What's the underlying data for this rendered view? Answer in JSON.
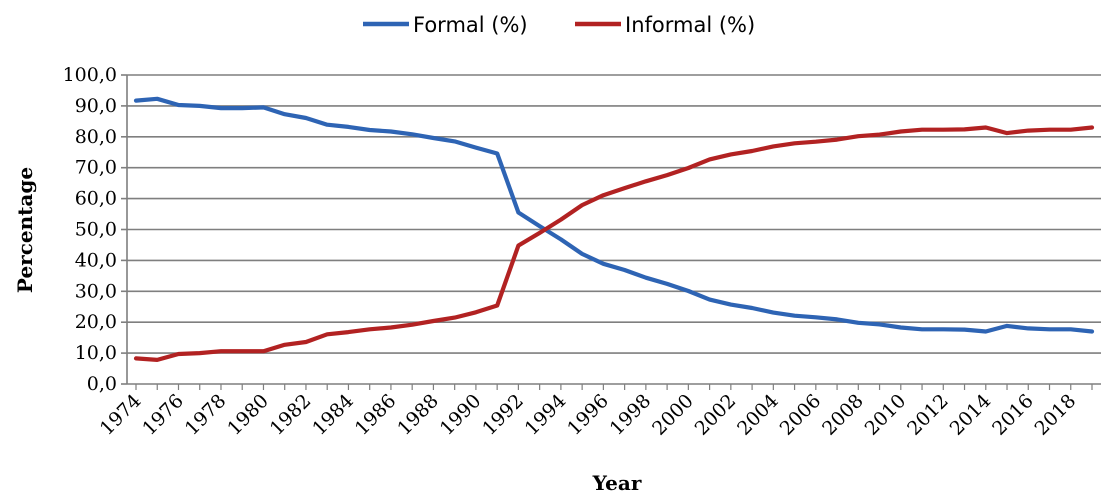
{
  "chart_data": {
    "type": "line",
    "title": "",
    "xlabel": "Year",
    "ylabel": "Percentage",
    "ylim": [
      0,
      100
    ],
    "yticks": [
      "0,0",
      "10,0",
      "20,0",
      "30,0",
      "40,0",
      "50,0",
      "60,0",
      "70,0",
      "80,0",
      "90,0",
      "100,0"
    ],
    "xticks": [
      "1974",
      "1976",
      "1978",
      "1980",
      "1982",
      "1984",
      "1986",
      "1988",
      "1990",
      "1992",
      "1994",
      "1996",
      "1998",
      "2000",
      "2002",
      "2004",
      "2006",
      "2008",
      "2010",
      "2012",
      "2014",
      "2016",
      "2018"
    ],
    "grid": "horizontal",
    "legend_position": "top",
    "x": [
      1974,
      1975,
      1976,
      1977,
      1978,
      1979,
      1980,
      1981,
      1982,
      1983,
      1984,
      1985,
      1986,
      1987,
      1988,
      1989,
      1990,
      1991,
      1992,
      1993,
      1994,
      1995,
      1996,
      1997,
      1998,
      1999,
      2000,
      2001,
      2002,
      2003,
      2004,
      2005,
      2006,
      2007,
      2008,
      2009,
      2010,
      2011,
      2012,
      2013,
      2014,
      2015,
      2016,
      2017,
      2018,
      2019
    ],
    "series": [
      {
        "name": "Formal (%)",
        "color": "#2e64b4",
        "values": [
          91.7,
          92.3,
          90.3,
          90.0,
          89.3,
          89.3,
          89.5,
          87.3,
          86.1,
          83.9,
          83.2,
          82.2,
          81.7,
          80.8,
          79.6,
          78.5,
          76.5,
          74.6,
          55.5,
          51.1,
          46.8,
          42.1,
          38.9,
          36.9,
          34.4,
          32.4,
          30.1,
          27.3,
          25.7,
          24.6,
          23.1,
          22.1,
          21.6,
          20.9,
          19.8,
          19.3,
          18.3,
          17.7,
          17.7,
          17.6,
          17.0,
          18.8,
          18.0,
          17.7,
          17.7,
          17.0
        ]
      },
      {
        "name": "Informal (%)",
        "color": "#b22222",
        "values": [
          8.3,
          7.8,
          9.7,
          10.0,
          10.6,
          10.6,
          10.6,
          12.7,
          13.6,
          16.1,
          16.8,
          17.7,
          18.3,
          19.2,
          20.4,
          21.5,
          23.2,
          25.4,
          44.8,
          48.9,
          53.2,
          57.9,
          61.1,
          63.4,
          65.6,
          67.6,
          69.9,
          72.7,
          74.3,
          75.4,
          76.9,
          77.9,
          78.4,
          79.1,
          80.2,
          80.7,
          81.7,
          82.3,
          82.3,
          82.4,
          83.0,
          81.2,
          82.0,
          82.3,
          82.3,
          83.0
        ]
      }
    ]
  }
}
